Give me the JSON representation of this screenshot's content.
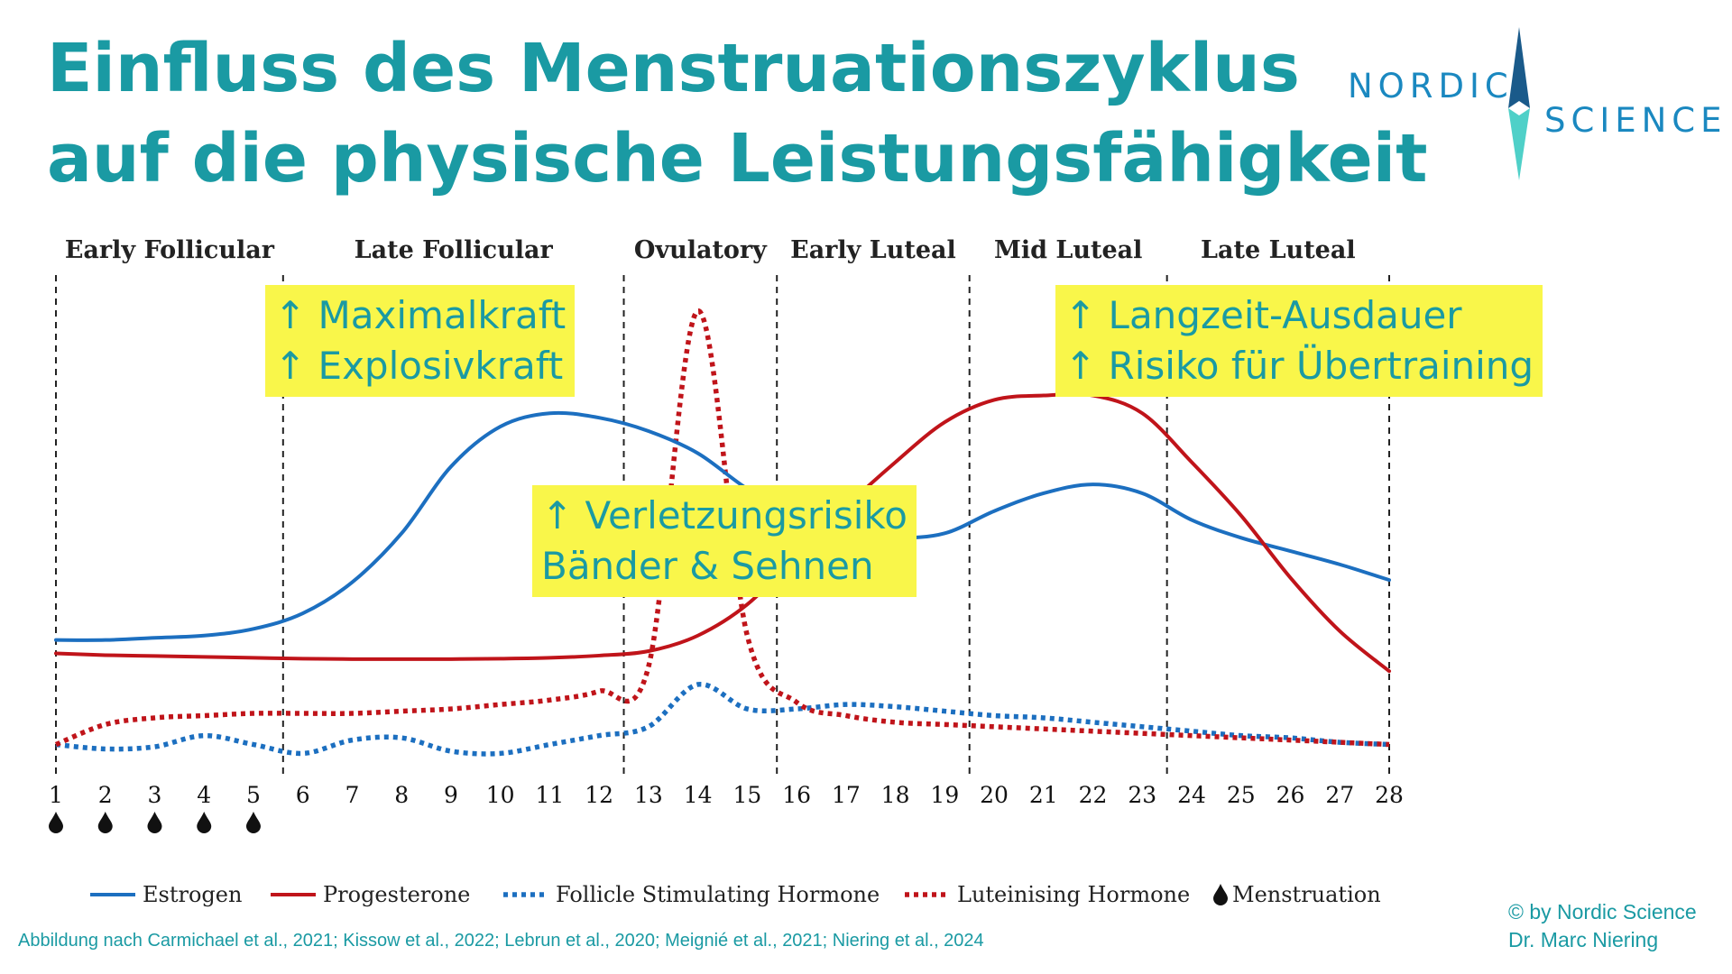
{
  "title": {
    "line1": "Einfluss des Menstruationszyklus",
    "line2": "auf die physische Leistungsfähigkeit"
  },
  "logo": {
    "word1": "NORDIC",
    "word2": "SCIENCE",
    "colors": {
      "dark": "#1a5a8a",
      "light": "#4fd0c8"
    }
  },
  "annotations": [
    {
      "line1": "↑ Maximalkraft",
      "line2": "↑ Explosivkraft"
    },
    {
      "line1": "↑ Verletzungsrisiko",
      "line2": "Bänder & Sehnen"
    },
    {
      "line1": "↑ Langzeit-Ausdauer",
      "line2": "↑ Risiko für Übertraining"
    }
  ],
  "chart_data": {
    "type": "line",
    "x": [
      1,
      2,
      3,
      4,
      5,
      6,
      7,
      8,
      9,
      10,
      11,
      12,
      13,
      14,
      15,
      16,
      17,
      18,
      19,
      20,
      21,
      22,
      23,
      24,
      25,
      26,
      27,
      28
    ],
    "phases": [
      {
        "label": "Early Follicular",
        "start": 1,
        "end": 5.6
      },
      {
        "label": "Late Follicular",
        "start": 5.6,
        "end": 12.5
      },
      {
        "label": "Ovulatory",
        "start": 12.5,
        "end": 15.6
      },
      {
        "label": "Early Luteal",
        "start": 15.6,
        "end": 19.5
      },
      {
        "label": "Mid Luteal",
        "start": 19.5,
        "end": 23.5
      },
      {
        "label": "Late Luteal",
        "start": 23.5,
        "end": 28
      }
    ],
    "boundaries": [
      1,
      5.6,
      12.5,
      15.6,
      19.5,
      23.5,
      28
    ],
    "menstruation_days": [
      1,
      2,
      3,
      4,
      5
    ],
    "series": [
      {
        "name": "Estrogen",
        "color": "#1c6fc0",
        "dash": false,
        "values": [
          24,
          24,
          24.5,
          25,
          26.5,
          30,
          37,
          48,
          63,
          72,
          75,
          74,
          71,
          66,
          58,
          52,
          48,
          47,
          48,
          53,
          57,
          59,
          57,
          51,
          47,
          44,
          41,
          37.5
        ]
      },
      {
        "name": "Progesterone",
        "color": "#c0141a",
        "dash": false,
        "values": [
          21,
          20.6,
          20.4,
          20.2,
          20,
          19.8,
          19.7,
          19.7,
          19.7,
          19.8,
          20,
          20.5,
          21.5,
          25,
          32,
          43,
          54,
          64,
          73,
          78,
          79,
          79,
          75,
          64,
          52,
          38,
          26,
          17
        ]
      },
      {
        "name": "Follicle Stimulating Hormone",
        "color": "#1c6fc0",
        "dash": true,
        "values": [
          0.5,
          -0.5,
          0,
          2.5,
          0.5,
          -1.5,
          1.5,
          2,
          -1,
          -1.5,
          0.5,
          2.5,
          4.5,
          14,
          8.5,
          8.5,
          9.5,
          9,
          8,
          7,
          6.5,
          5.5,
          4.5,
          3.5,
          2.5,
          2,
          1,
          0.5
        ]
      },
      {
        "name": "Luteinising Hormone",
        "color": "#c0141a",
        "dash": true,
        "values": [
          0.5,
          5,
          6.5,
          7,
          7.5,
          7.5,
          7.5,
          8,
          8.5,
          9.5,
          10.5,
          12.5,
          18,
          98,
          25,
          10,
          7,
          5.5,
          5,
          4.5,
          4,
          3.5,
          3,
          2.5,
          2,
          1.5,
          1,
          0.5
        ]
      }
    ],
    "legend": [
      "Estrogen",
      "Progesterone",
      "Follicle Stimulating Hormone",
      "Luteinising Hormone",
      "Menstruation"
    ],
    "ylim": [
      0,
      100
    ],
    "grid": false
  },
  "footer": {
    "source": "Abbildung nach Carmichael et al., 2021; Kissow et al., 2022; Lebrun et al., 2020; Meignié et al., 2021; Niering et al., 2024",
    "credit1": "© by Nordic Science",
    "credit2": "Dr. Marc Niering"
  }
}
